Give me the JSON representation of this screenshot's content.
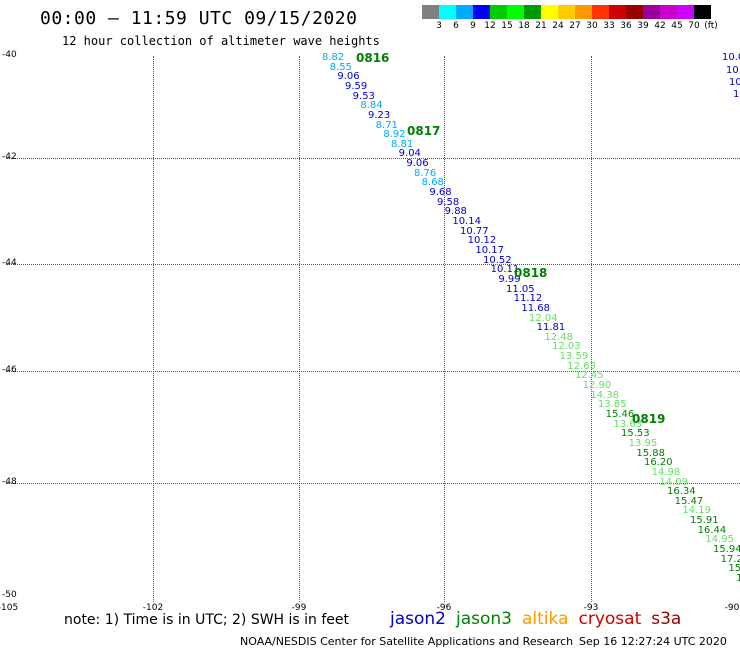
{
  "title": "00:00 – 11:59 UTC 09/15/2020",
  "subtitle": "12 hour collection of altimeter wave heights",
  "colorbar": {
    "colors": [
      "#808080",
      "#00ffff",
      "#00aaff",
      "#0000ff",
      "#00cc00",
      "#00ff00",
      "#009900",
      "#ffff00",
      "#ffcc00",
      "#ff9900",
      "#ff3300",
      "#cc0000",
      "#990000",
      "#990099",
      "#cc00cc",
      "#cc00ff",
      "#000000"
    ],
    "labels": [
      "3",
      "6",
      "9",
      "12",
      "15",
      "18",
      "21",
      "24",
      "27",
      "30",
      "33",
      "36",
      "39",
      "42",
      "45",
      "70",
      "(ft)"
    ]
  },
  "map": {
    "lat_labels": [
      "-40",
      "-42",
      "-44",
      "-46",
      "-48",
      "-50"
    ],
    "lon_labels": [
      "-105",
      "-102",
      "-99",
      "-96",
      "-93",
      "-90"
    ]
  },
  "track_points": [
    {
      "v": "8.82",
      "c": "#00aaff"
    },
    {
      "v": "8.55",
      "c": "#00aaff"
    },
    {
      "v": "9.06",
      "c": "#0000cc"
    },
    {
      "v": "9.59",
      "c": "#0000cc"
    },
    {
      "v": "9.53",
      "c": "#0000cc"
    },
    {
      "v": "8.84",
      "c": "#00aaff"
    },
    {
      "v": "9.23",
      "c": "#0000cc"
    },
    {
      "v": "8.71",
      "c": "#00aaff"
    },
    {
      "v": "8.92",
      "c": "#00aaff"
    },
    {
      "v": "8.81",
      "c": "#00aaff"
    },
    {
      "v": "9.04",
      "c": "#0000cc"
    },
    {
      "v": "9.06",
      "c": "#0000cc"
    },
    {
      "v": "8.76",
      "c": "#00aaff"
    },
    {
      "v": "8.68",
      "c": "#00aaff"
    },
    {
      "v": "9.68",
      "c": "#0000cc"
    },
    {
      "v": "9.58",
      "c": "#0000cc"
    },
    {
      "v": "9.88",
      "c": "#0000cc"
    },
    {
      "v": "10.14",
      "c": "#0000cc"
    },
    {
      "v": "10.77",
      "c": "#0000cc"
    },
    {
      "v": "10.12",
      "c": "#0000cc"
    },
    {
      "v": "10.17",
      "c": "#0000cc"
    },
    {
      "v": "10.52",
      "c": "#0000cc"
    },
    {
      "v": "10.11",
      "c": "#0000cc"
    },
    {
      "v": "9.99",
      "c": "#0000cc"
    },
    {
      "v": "11.05",
      "c": "#0000cc"
    },
    {
      "v": "11.12",
      "c": "#0000cc"
    },
    {
      "v": "11.68",
      "c": "#0000cc"
    },
    {
      "v": "12.04",
      "c": "#66dd66"
    },
    {
      "v": "11.81",
      "c": "#0000cc"
    },
    {
      "v": "12.48",
      "c": "#66dd66"
    },
    {
      "v": "12.03",
      "c": "#66dd66"
    },
    {
      "v": "13.59",
      "c": "#66dd66"
    },
    {
      "v": "12.63",
      "c": "#66dd66"
    },
    {
      "v": "12.45",
      "c": "#66dd66"
    },
    {
      "v": "12.90",
      "c": "#66dd66"
    },
    {
      "v": "14.38",
      "c": "#66dd66"
    },
    {
      "v": "13.85",
      "c": "#66dd66"
    },
    {
      "v": "15.46",
      "c": "#008000"
    },
    {
      "v": "13.63",
      "c": "#66dd66"
    },
    {
      "v": "15.53",
      "c": "#008000"
    },
    {
      "v": "13.95",
      "c": "#66dd66"
    },
    {
      "v": "15.88",
      "c": "#008000"
    },
    {
      "v": "16.20",
      "c": "#008000"
    },
    {
      "v": "14.98",
      "c": "#66dd66"
    },
    {
      "v": "14.09",
      "c": "#66dd66"
    },
    {
      "v": "16.34",
      "c": "#008000"
    },
    {
      "v": "15.47",
      "c": "#008000"
    },
    {
      "v": "14.19",
      "c": "#66dd66"
    },
    {
      "v": "15.91",
      "c": "#008000"
    },
    {
      "v": "16.44",
      "c": "#008000"
    },
    {
      "v": "14.95",
      "c": "#66dd66"
    },
    {
      "v": "15.94",
      "c": "#008000"
    },
    {
      "v": "17.20",
      "c": "#008000"
    },
    {
      "v": "15.",
      "c": "#008000"
    },
    {
      "v": "1",
      "c": "#008000"
    }
  ],
  "time_marks": [
    "0816",
    "0817",
    "0818",
    "0819"
  ],
  "right_edge_points": [
    {
      "v": "10.0",
      "c": "#0000cc"
    },
    {
      "v": "10.",
      "c": "#0000cc"
    },
    {
      "v": "10",
      "c": "#0000cc"
    },
    {
      "v": "1",
      "c": "#0000cc"
    }
  ],
  "note": "note: 1) Time is in UTC; 2) SWH is in feet",
  "satellites": [
    {
      "name": "jason2",
      "color": "#0000cc"
    },
    {
      "name": "jason3",
      "color": "#008000"
    },
    {
      "name": "altika",
      "color": "#ff9900"
    },
    {
      "name": "cryosat",
      "color": "#cc0000"
    },
    {
      "name": "s3a",
      "color": "#990000"
    }
  ],
  "footer_left": "NOAA/NESDIS Center for Satellite Applications and Research",
  "footer_right": "Sep 16 12:27:24 UTC 2020"
}
